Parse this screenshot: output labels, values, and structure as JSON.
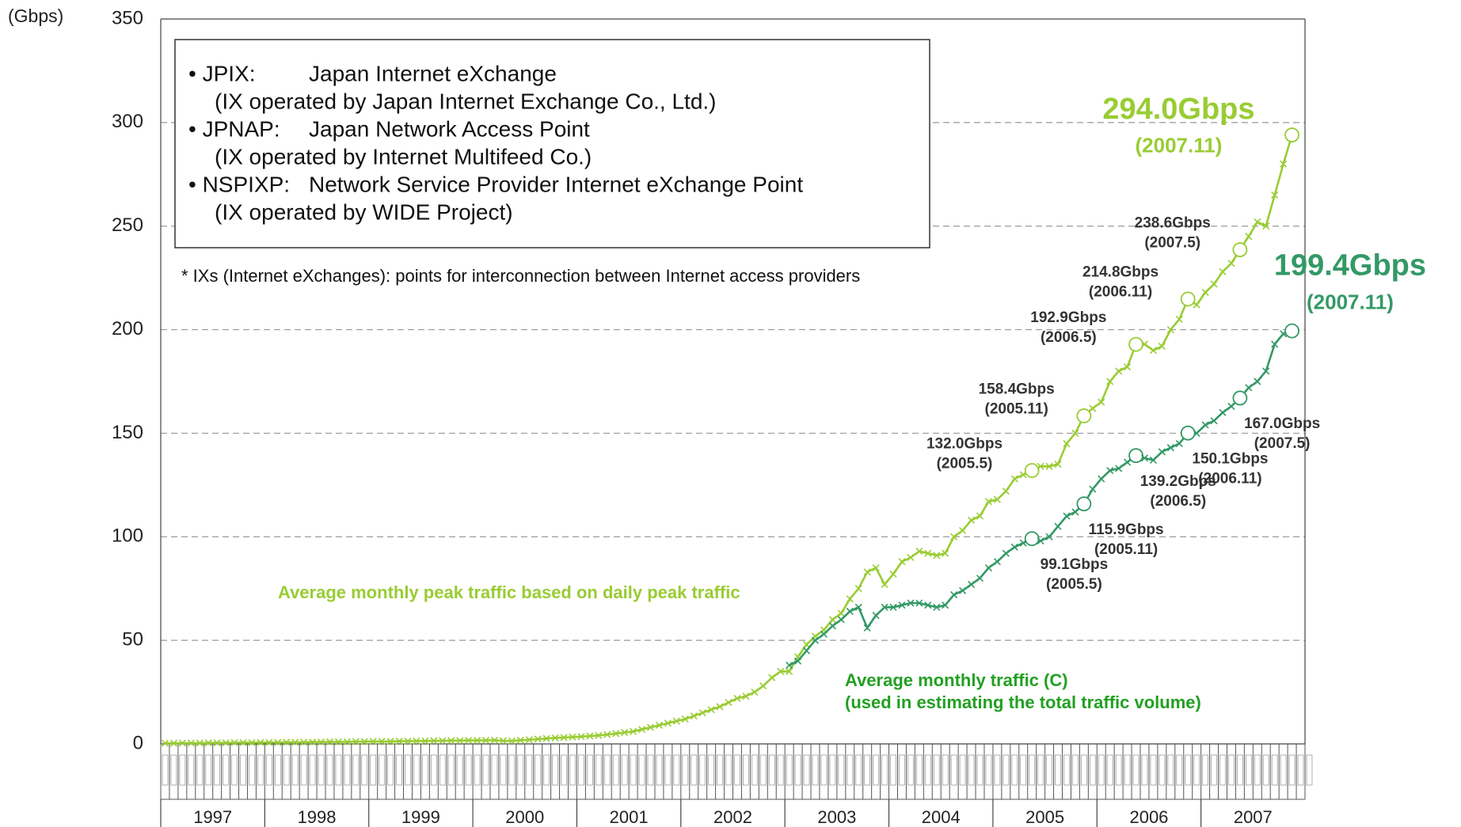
{
  "chart_data": {
    "type": "line",
    "y_unit": "(Gbps)",
    "ylim": [
      0,
      350
    ],
    "yticks": [
      0,
      50,
      100,
      150,
      200,
      250,
      300,
      350
    ],
    "grid": true,
    "year_labels": [
      "1997",
      "1998",
      "1999",
      "2000",
      "2001",
      "2002",
      "2003",
      "2004",
      "2005",
      "2006",
      "2007"
    ],
    "legend_box": [
      [
        "• JPIX:",
        "Japan Internet eXchange",
        "(IX operated by Japan Internet Exchange Co., Ltd.)"
      ],
      [
        "• JPNAP:",
        "Japan Network Access Point",
        "(IX operated by Internet Multifeed Co.)"
      ],
      [
        "• NSPIXP:",
        "Network Service Provider Internet eXchange Point",
        "(IX operated by WIDE Project)"
      ]
    ],
    "footnote": "* IXs (Internet eXchanges): points for interconnection between Internet access providers",
    "series": [
      {
        "name": [
          "Average monthly peak traffic based on daily peak traffic"
        ],
        "color": "#99cc33",
        "label_color": "#99cc33",
        "values": [
          0.3,
          0.3,
          0.4,
          0.4,
          0.4,
          0.5,
          0.5,
          0.5,
          0.6,
          0.6,
          0.6,
          0.7,
          0.7,
          0.7,
          0.8,
          0.8,
          0.8,
          0.9,
          0.9,
          1.0,
          1.0,
          1.0,
          1.1,
          1.1,
          1.2,
          1.2,
          1.2,
          1.3,
          1.3,
          1.4,
          1.4,
          1.5,
          1.5,
          1.6,
          1.6,
          1.7,
          1.7,
          1.7,
          1.8,
          1.5,
          1.4,
          1.8,
          2.0,
          2.3,
          2.6,
          2.9,
          3.1,
          3.3,
          3.5,
          3.8,
          4.1,
          4.5,
          5,
          5.5,
          6,
          7,
          8,
          9,
          10,
          11,
          12,
          13.5,
          15,
          16.5,
          18,
          20,
          22,
          23,
          25,
          28,
          32,
          35,
          35,
          42,
          48,
          52,
          55,
          60,
          63,
          70,
          75,
          83,
          85,
          77,
          82,
          88,
          90,
          93,
          92,
          91,
          92,
          100,
          103,
          108,
          110,
          117,
          118,
          122,
          128,
          130,
          132.0,
          134,
          134,
          135,
          145,
          150,
          158.4,
          162,
          165,
          175,
          180,
          182,
          192.9,
          193,
          190,
          192,
          200,
          205,
          214.8,
          212,
          218,
          222,
          228,
          232,
          238.6,
          245,
          252,
          250,
          265,
          280,
          294.0
        ],
        "value_labels": [
          null,
          null,
          null,
          null,
          null,
          null,
          null,
          null,
          null,
          null,
          null,
          null,
          null,
          null,
          null,
          null,
          null,
          null,
          null,
          null,
          null,
          null,
          null,
          null,
          null,
          null,
          null,
          null,
          null,
          null,
          null,
          null,
          null,
          null,
          null,
          null,
          null,
          null,
          null,
          null,
          null,
          null,
          null,
          null,
          null,
          null,
          null,
          null,
          null,
          null,
          null,
          null,
          null,
          null,
          null,
          null,
          null,
          null,
          null,
          null,
          null,
          null,
          null,
          null,
          null,
          null,
          null,
          null,
          null,
          null,
          null,
          null,
          null,
          null,
          null,
          null,
          null,
          null,
          null,
          null,
          null,
          null,
          null,
          null,
          null,
          null,
          null,
          null,
          null,
          null,
          null,
          null,
          null,
          null,
          null,
          null,
          null,
          null,
          null,
          null,
          "132.0Gbps",
          null,
          null,
          null,
          null,
          null,
          "158.4Gbps",
          null,
          null,
          null,
          null,
          null,
          "192.9Gbps",
          null,
          null,
          null,
          null,
          null,
          "214.8Gbps",
          null,
          null,
          null,
          null,
          null,
          "238.6Gbps",
          null,
          null,
          null,
          null,
          null,
          "294.0Gbps"
        ],
        "date_labels": [
          null,
          null,
          null,
          null,
          null,
          null,
          null,
          null,
          null,
          null,
          null,
          null,
          null,
          null,
          null,
          null,
          null,
          null,
          null,
          null,
          null,
          null,
          null,
          null,
          null,
          null,
          null,
          null,
          null,
          null,
          null,
          null,
          null,
          null,
          null,
          null,
          null,
          null,
          null,
          null,
          null,
          null,
          null,
          null,
          null,
          null,
          null,
          null,
          null,
          null,
          null,
          null,
          null,
          null,
          null,
          null,
          null,
          null,
          null,
          null,
          null,
          null,
          null,
          null,
          null,
          null,
          null,
          null,
          null,
          null,
          null,
          null,
          null,
          null,
          null,
          null,
          null,
          null,
          null,
          null,
          null,
          null,
          null,
          null,
          null,
          null,
          null,
          null,
          null,
          null,
          null,
          null,
          null,
          null,
          null,
          null,
          null,
          null,
          null,
          null,
          "(2005.5)",
          null,
          null,
          null,
          null,
          null,
          "(2005.11)",
          null,
          null,
          null,
          null,
          null,
          "(2006.5)",
          null,
          null,
          null,
          null,
          null,
          "(2006.11)",
          null,
          null,
          null,
          null,
          null,
          "(2007.5)",
          null,
          null,
          null,
          null,
          null,
          "(2007.11)"
        ]
      },
      {
        "name": [
          "Average monthly traffic (C)",
          "(used in estimating the total traffic volume)"
        ],
        "color": "#339966",
        "label_color": "#22a022",
        "values": [
          null,
          null,
          null,
          null,
          null,
          null,
          null,
          null,
          null,
          null,
          null,
          null,
          null,
          null,
          null,
          null,
          null,
          null,
          null,
          null,
          null,
          null,
          null,
          null,
          null,
          null,
          null,
          null,
          null,
          null,
          null,
          null,
          null,
          null,
          null,
          null,
          null,
          null,
          null,
          null,
          null,
          null,
          null,
          null,
          null,
          null,
          null,
          null,
          null,
          null,
          null,
          null,
          null,
          null,
          null,
          null,
          null,
          null,
          null,
          null,
          null,
          null,
          null,
          null,
          null,
          null,
          null,
          null,
          null,
          null,
          null,
          null,
          38,
          40,
          45,
          50,
          53,
          57,
          60,
          64,
          66,
          56,
          62,
          66,
          66,
          67,
          68,
          68,
          67,
          66,
          67,
          72,
          74,
          77,
          80,
          85,
          88,
          92,
          95,
          97,
          99.1,
          98,
          100,
          105,
          110,
          112,
          115.9,
          123,
          128,
          132,
          133,
          136,
          139.2,
          138,
          137,
          141,
          143,
          145,
          150.1,
          150,
          154,
          156,
          160,
          163,
          167.0,
          172,
          175,
          180,
          193,
          198,
          199.4
        ],
        "value_labels": [
          null,
          null,
          null,
          null,
          null,
          null,
          null,
          null,
          null,
          null,
          null,
          null,
          null,
          null,
          null,
          null,
          null,
          null,
          null,
          null,
          null,
          null,
          null,
          null,
          null,
          null,
          null,
          null,
          null,
          null,
          null,
          null,
          null,
          null,
          null,
          null,
          null,
          null,
          null,
          null,
          null,
          null,
          null,
          null,
          null,
          null,
          null,
          null,
          null,
          null,
          null,
          null,
          null,
          null,
          null,
          null,
          null,
          null,
          null,
          null,
          null,
          null,
          null,
          null,
          null,
          null,
          null,
          null,
          null,
          null,
          null,
          null,
          null,
          null,
          null,
          null,
          null,
          null,
          null,
          null,
          null,
          null,
          null,
          null,
          null,
          null,
          null,
          null,
          null,
          null,
          null,
          null,
          null,
          null,
          null,
          null,
          null,
          null,
          null,
          null,
          "99.1Gbps",
          null,
          null,
          null,
          null,
          null,
          "115.9Gbps",
          null,
          null,
          null,
          null,
          null,
          "139.2Gbps",
          null,
          null,
          null,
          null,
          null,
          "150.1Gbps",
          null,
          null,
          null,
          null,
          null,
          "167.0Gbps",
          null,
          null,
          null,
          null,
          null,
          "199.4Gbps"
        ],
        "date_labels": [
          null,
          null,
          null,
          null,
          null,
          null,
          null,
          null,
          null,
          null,
          null,
          null,
          null,
          null,
          null,
          null,
          null,
          null,
          null,
          null,
          null,
          null,
          null,
          null,
          null,
          null,
          null,
          null,
          null,
          null,
          null,
          null,
          null,
          null,
          null,
          null,
          null,
          null,
          null,
          null,
          null,
          null,
          null,
          null,
          null,
          null,
          null,
          null,
          null,
          null,
          null,
          null,
          null,
          null,
          null,
          null,
          null,
          null,
          null,
          null,
          null,
          null,
          null,
          null,
          null,
          null,
          null,
          null,
          null,
          null,
          null,
          null,
          null,
          null,
          null,
          null,
          null,
          null,
          null,
          null,
          null,
          null,
          null,
          null,
          null,
          null,
          null,
          null,
          null,
          null,
          null,
          null,
          null,
          null,
          null,
          null,
          null,
          null,
          null,
          null,
          "(2005.5)",
          null,
          null,
          null,
          null,
          null,
          "(2005.11)",
          null,
          null,
          null,
          null,
          null,
          "(2006.5)",
          null,
          null,
          null,
          null,
          null,
          "(2006.11)",
          null,
          null,
          null,
          null,
          null,
          "(2007.5)",
          null,
          null,
          null,
          null,
          null,
          "(2007.11)"
        ]
      }
    ]
  }
}
